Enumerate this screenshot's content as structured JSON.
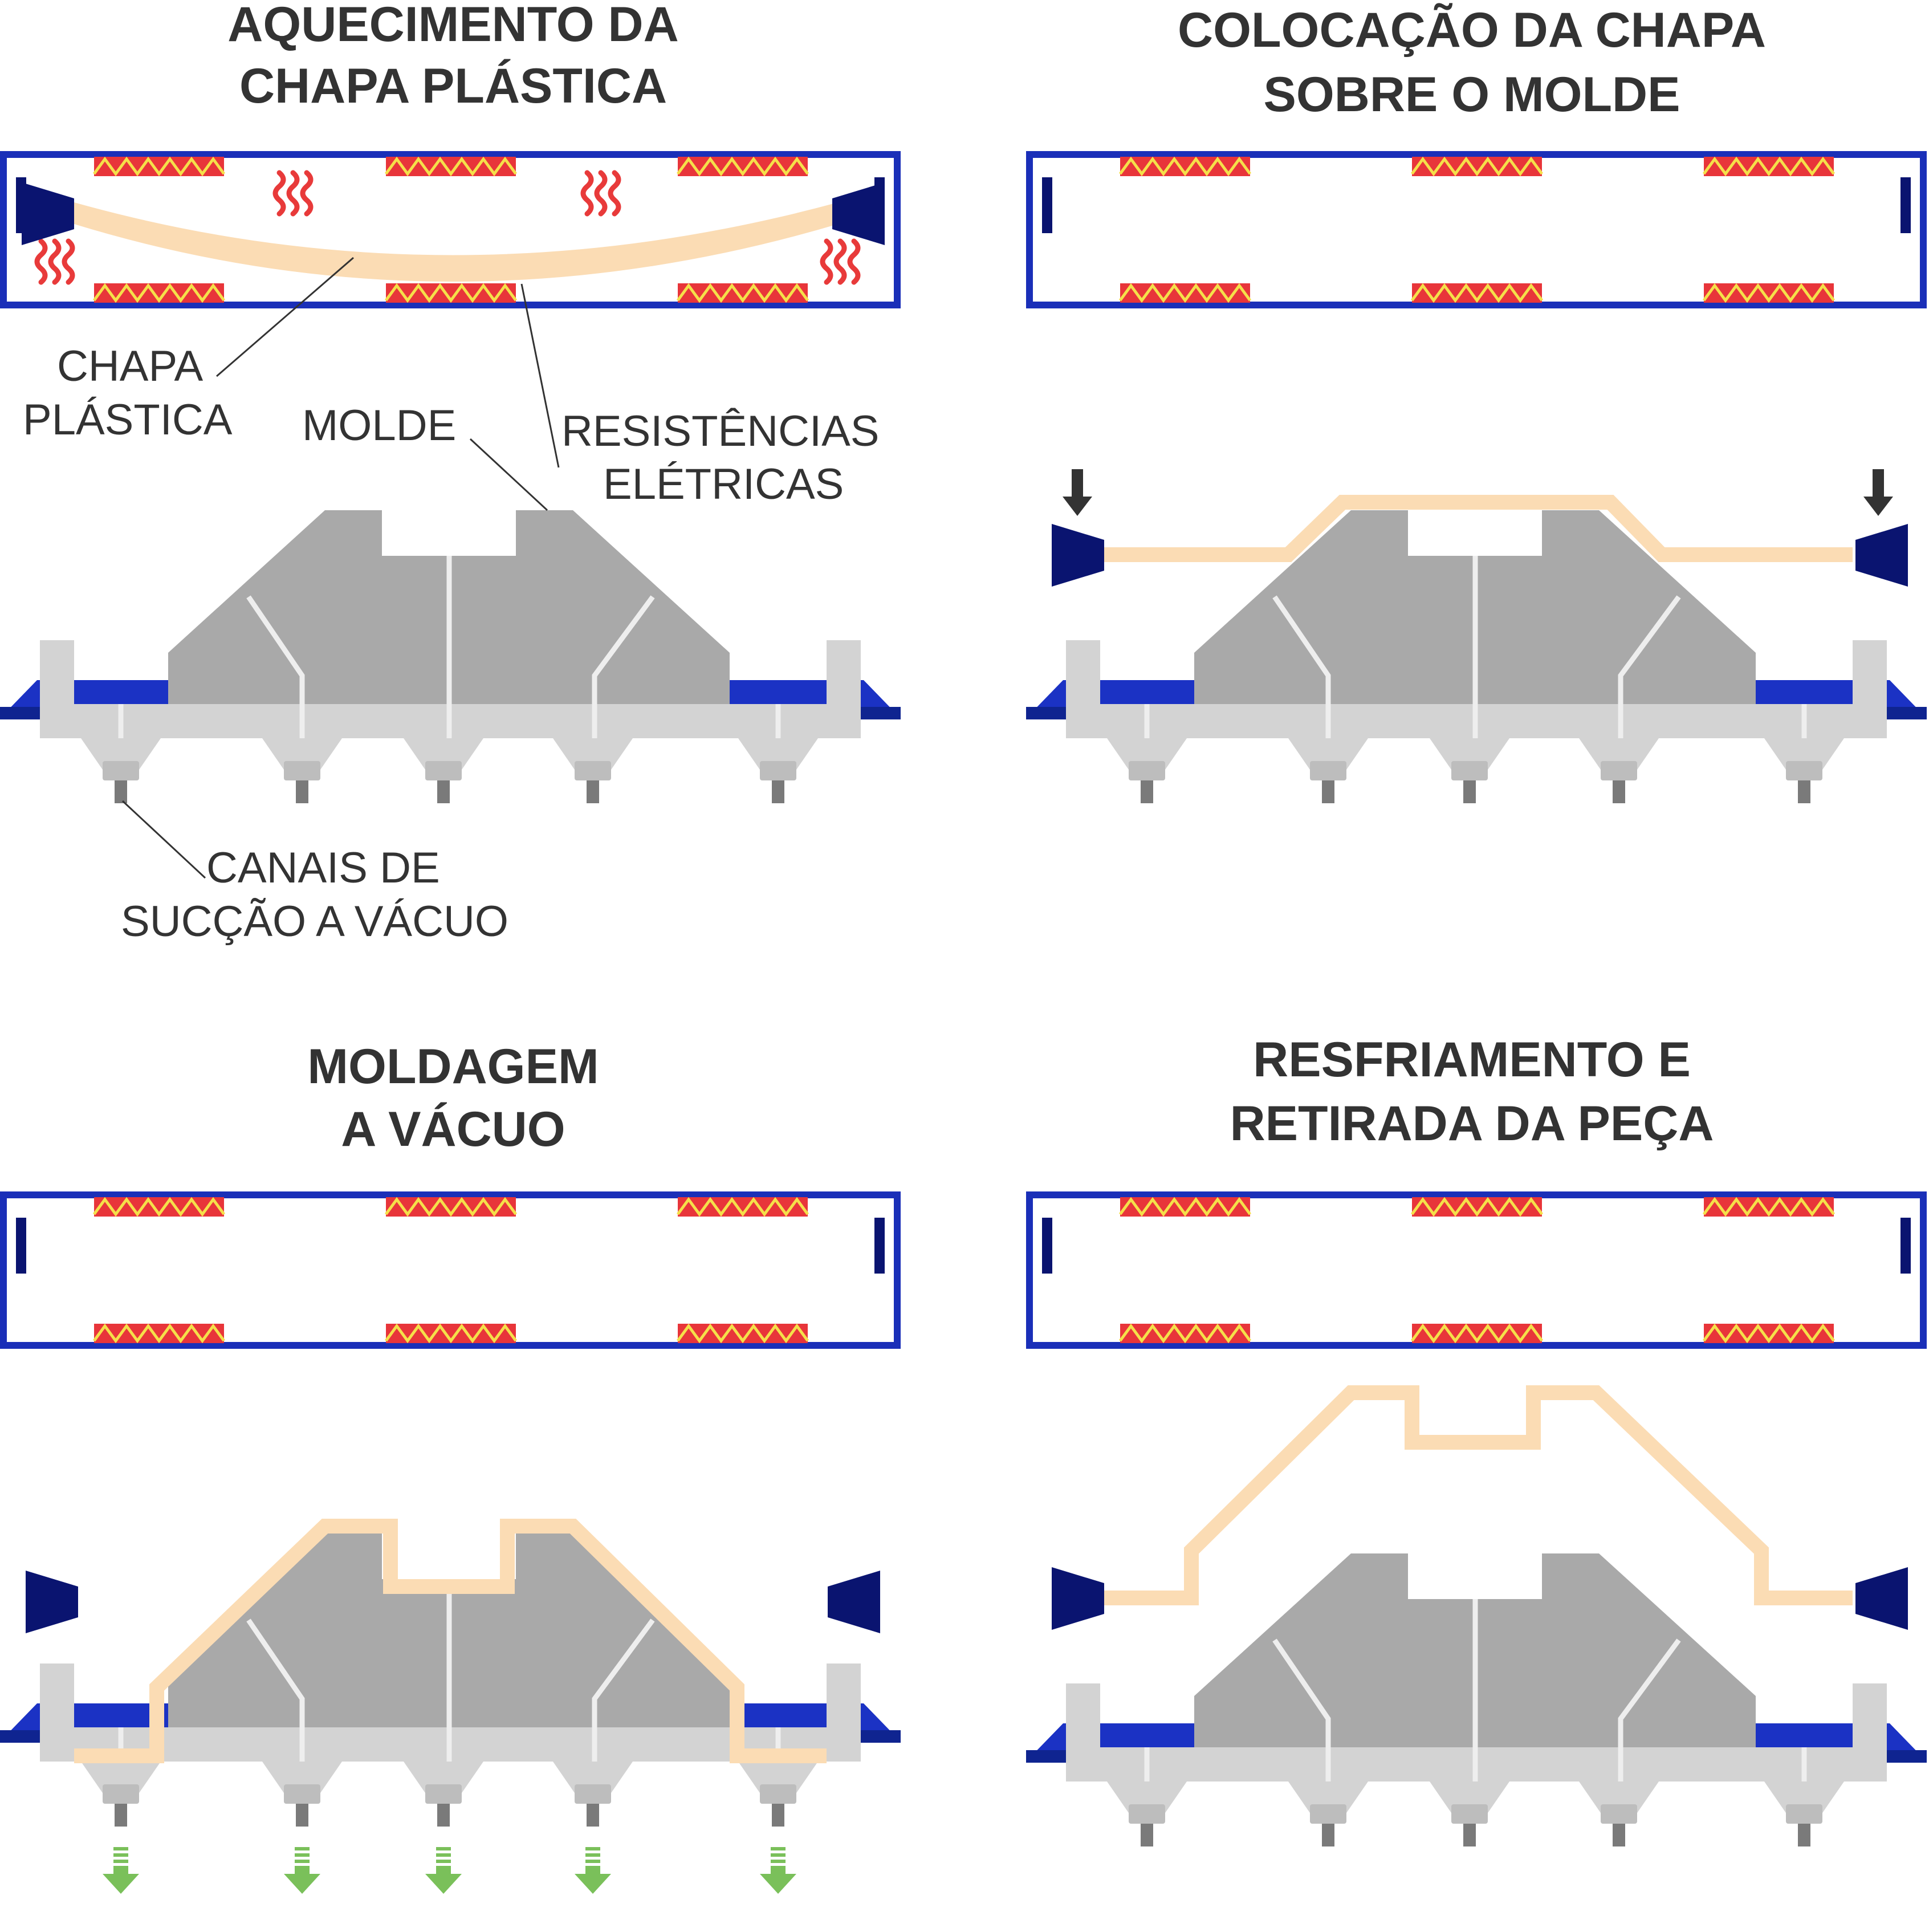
{
  "panels": [
    {
      "title_line1": "AQUECIMENTO DA",
      "title_line2": "CHAPA PLÁSTICA"
    },
    {
      "title_line1": "COLOCAÇÃO DA CHAPA",
      "title_line2": "SOBRE O MOLDE"
    },
    {
      "title_line1": "MOLDAGEM",
      "title_line2": "A VÁCUO"
    },
    {
      "title_line1": "RESFRIAMENTO E",
      "title_line2": "RETIRADA DA PEÇA"
    }
  ],
  "labels": {
    "sheet_line1": "CHAPA",
    "sheet_line2": "PLÁSTICA",
    "mold": "MOLDE",
    "resistors_line1": "RESISTÊNCIAS",
    "resistors_line2": "ELÉTRICAS",
    "channels_line1": "CANAIS DE",
    "channels_line2": "SUCÇÃO A VÁCUO"
  },
  "colors": {
    "oven_frame": "#1a2fb8",
    "clamp": "#0a1470",
    "heater_fill": "#e8353a",
    "heater_zigzag": "#f5e04a",
    "heat_waves": "#e83a3a",
    "plastic_sheet": "#fbdcb4",
    "mold": "#a9a9a9",
    "base_plate": "#d3d3d3",
    "machine_base": "#1b32c4",
    "vacuum_arrow": "#7ac05a",
    "press_arrow": "#333333"
  }
}
